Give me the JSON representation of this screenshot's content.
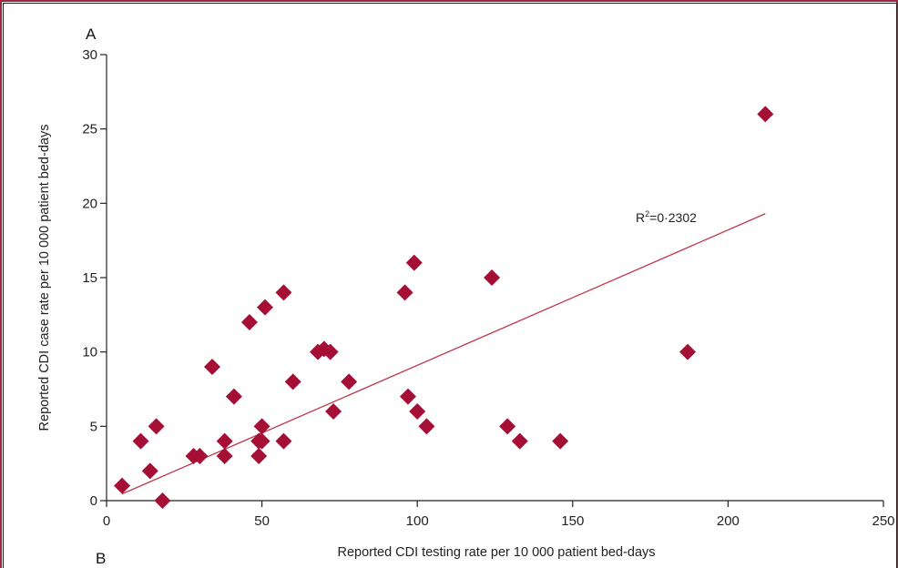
{
  "panel_labels": {
    "top": "A",
    "bottom": "B"
  },
  "colors": {
    "marker": "#a60f35",
    "trendline": "#c0394b",
    "frame": "#a0243b",
    "axis": "#222222"
  },
  "chart_data": {
    "type": "scatter",
    "xlabel": "Reported CDI testing rate per 10 000 patient bed-days",
    "ylabel": "Reported CDI case rate per 10 000 patient bed-days",
    "xlim": [
      0,
      250
    ],
    "ylim": [
      0,
      30
    ],
    "xticks": [
      0,
      50,
      100,
      150,
      200,
      250
    ],
    "yticks": [
      0,
      5,
      10,
      15,
      20,
      25,
      30
    ],
    "grid": false,
    "marker": "diamond",
    "points": [
      {
        "x": 5,
        "y": 1
      },
      {
        "x": 11,
        "y": 4
      },
      {
        "x": 14,
        "y": 2
      },
      {
        "x": 16,
        "y": 5
      },
      {
        "x": 18,
        "y": 0
      },
      {
        "x": 28,
        "y": 3
      },
      {
        "x": 30,
        "y": 3
      },
      {
        "x": 34,
        "y": 9
      },
      {
        "x": 38,
        "y": 4
      },
      {
        "x": 38,
        "y": 3
      },
      {
        "x": 41,
        "y": 7
      },
      {
        "x": 46,
        "y": 12
      },
      {
        "x": 49,
        "y": 4
      },
      {
        "x": 49,
        "y": 3
      },
      {
        "x": 50,
        "y": 5
      },
      {
        "x": 50,
        "y": 4
      },
      {
        "x": 51,
        "y": 13
      },
      {
        "x": 57,
        "y": 14
      },
      {
        "x": 57,
        "y": 4
      },
      {
        "x": 60,
        "y": 8
      },
      {
        "x": 68,
        "y": 10
      },
      {
        "x": 70,
        "y": 10.2
      },
      {
        "x": 72,
        "y": 10
      },
      {
        "x": 73,
        "y": 6
      },
      {
        "x": 78,
        "y": 8
      },
      {
        "x": 96,
        "y": 14
      },
      {
        "x": 97,
        "y": 7
      },
      {
        "x": 99,
        "y": 16
      },
      {
        "x": 100,
        "y": 6
      },
      {
        "x": 103,
        "y": 5
      },
      {
        "x": 124,
        "y": 15
      },
      {
        "x": 129,
        "y": 5
      },
      {
        "x": 133,
        "y": 4
      },
      {
        "x": 146,
        "y": 4
      },
      {
        "x": 187,
        "y": 10
      },
      {
        "x": 212,
        "y": 26
      }
    ],
    "trendline": {
      "x": [
        5,
        212
      ],
      "y": [
        0.45,
        19.3
      ]
    },
    "annotation": {
      "label_prefix": "R",
      "superscript": "2",
      "label_suffix": "=0·2302"
    }
  }
}
